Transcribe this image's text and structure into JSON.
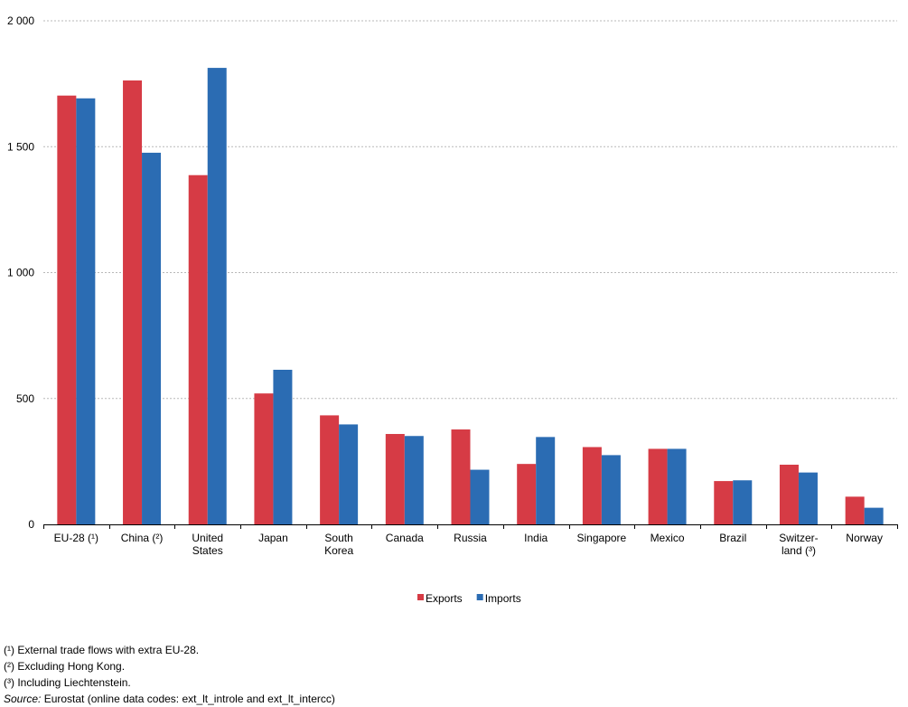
{
  "chart_data": {
    "type": "bar",
    "categories": [
      [
        "EU-28 (¹)"
      ],
      [
        "China (²)"
      ],
      [
        "United",
        "States"
      ],
      [
        "Japan"
      ],
      [
        "South",
        "Korea"
      ],
      [
        "Canada"
      ],
      [
        "Russia"
      ],
      [
        "India"
      ],
      [
        "Singapore"
      ],
      [
        "Mexico"
      ],
      [
        "Brazil"
      ],
      [
        "Switzer-",
        "land (³)"
      ],
      [
        "Norway"
      ]
    ],
    "series": [
      {
        "name": "Exports",
        "color": "#d63b45",
        "values": [
          1703,
          1763,
          1387,
          520,
          433,
          359,
          377,
          240,
          307,
          300,
          172,
          237,
          110
        ]
      },
      {
        "name": "Imports",
        "color": "#2b6cb3",
        "values": [
          1692,
          1476,
          1813,
          614,
          397,
          351,
          217,
          347,
          275,
          300,
          175,
          206,
          66
        ]
      }
    ],
    "ylim": [
      0,
      2000
    ],
    "yticks": [
      0,
      500,
      1000,
      1500,
      2000
    ],
    "ytick_labels": [
      "0",
      "500",
      "1 000",
      "1 500",
      "2 000"
    ],
    "grid": true,
    "legend": "bottom-center"
  },
  "footnotes": [
    "(¹) External trade flows with extra EU-28.",
    "(²) Excluding Hong Kong.",
    "(³) Including Liechtenstein."
  ],
  "source": {
    "label": "Source:",
    "text": " Eurostat (online data codes: ext_lt_introle and ext_lt_intercc)"
  }
}
